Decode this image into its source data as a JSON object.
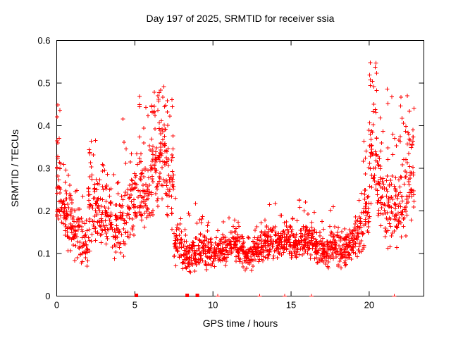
{
  "chart_data": {
    "type": "scatter",
    "title": "Day 197 of 2025, SRMTID for receiver ssia",
    "xlabel": "GPS time / hours",
    "ylabel": "SRMTID / TECUs",
    "xlim": [
      0,
      23.5
    ],
    "ylim": [
      0,
      0.6
    ],
    "xticks": [
      0,
      5,
      10,
      15,
      20
    ],
    "xtick_labels": [
      "0",
      "5",
      "10",
      "15",
      "20"
    ],
    "yticks": [
      0,
      0.1,
      0.2,
      0.3,
      0.4,
      0.5,
      0.6
    ],
    "ytick_labels": [
      "0",
      "0.1",
      "0.2",
      "0.3",
      "0.4",
      "0.5",
      "0.6"
    ],
    "grid": false,
    "legend": "none",
    "marker": "plus",
    "marker_color": "#ff0000",
    "series_name": "SRMTID",
    "density_envelope_bins": {
      "format": [
        "x_start_hours",
        "x_end_hours",
        "n_points",
        "y_min_tecu",
        "y_max_tecu",
        "y_spike_max_tecu",
        "spike_fraction"
      ],
      "bins": [
        [
          0.0,
          0.3,
          35,
          0.13,
          0.33,
          0.46,
          0.15
        ],
        [
          0.3,
          0.6,
          30,
          0.12,
          0.28,
          0.35,
          0.1
        ],
        [
          0.6,
          1.0,
          40,
          0.1,
          0.26,
          0.31,
          0.08
        ],
        [
          1.0,
          1.5,
          45,
          0.08,
          0.22,
          0.28,
          0.08
        ],
        [
          1.5,
          2.0,
          40,
          0.05,
          0.18,
          0.24,
          0.06
        ],
        [
          2.0,
          2.5,
          50,
          0.1,
          0.33,
          0.38,
          0.12
        ],
        [
          2.5,
          3.0,
          45,
          0.1,
          0.3,
          0.33,
          0.08
        ],
        [
          3.0,
          3.5,
          45,
          0.1,
          0.28,
          0.31,
          0.06
        ],
        [
          3.5,
          4.0,
          40,
          0.06,
          0.24,
          0.3,
          0.08
        ],
        [
          4.0,
          4.5,
          40,
          0.08,
          0.3,
          0.46,
          0.08
        ],
        [
          4.5,
          5.0,
          40,
          0.12,
          0.3,
          0.34,
          0.06
        ],
        [
          5.0,
          5.5,
          45,
          0.14,
          0.33,
          0.47,
          0.1
        ],
        [
          5.5,
          6.0,
          45,
          0.15,
          0.34,
          0.45,
          0.1
        ],
        [
          6.0,
          6.5,
          55,
          0.18,
          0.42,
          0.49,
          0.15
        ],
        [
          6.5,
          7.0,
          55,
          0.2,
          0.44,
          0.5,
          0.15
        ],
        [
          7.0,
          7.5,
          50,
          0.15,
          0.4,
          0.48,
          0.12
        ],
        [
          7.5,
          8.0,
          45,
          0.06,
          0.18,
          0.27,
          0.08
        ],
        [
          8.0,
          8.5,
          45,
          0.05,
          0.14,
          0.2,
          0.05
        ],
        [
          8.5,
          9.0,
          45,
          0.05,
          0.15,
          0.26,
          0.06
        ],
        [
          9.0,
          9.5,
          45,
          0.06,
          0.16,
          0.2,
          0.05
        ],
        [
          9.5,
          10.0,
          45,
          0.06,
          0.15,
          0.18,
          0.05
        ],
        [
          10.0,
          10.5,
          45,
          0.06,
          0.14,
          0.17,
          0.05
        ],
        [
          10.5,
          11.0,
          45,
          0.07,
          0.16,
          0.19,
          0.05
        ],
        [
          11.0,
          11.5,
          45,
          0.08,
          0.17,
          0.21,
          0.05
        ],
        [
          11.5,
          12.0,
          45,
          0.06,
          0.15,
          0.18,
          0.05
        ],
        [
          12.0,
          12.5,
          45,
          0.05,
          0.13,
          0.16,
          0.05
        ],
        [
          12.5,
          13.0,
          45,
          0.06,
          0.15,
          0.18,
          0.05
        ],
        [
          13.0,
          13.5,
          45,
          0.08,
          0.17,
          0.2,
          0.05
        ],
        [
          13.5,
          14.0,
          45,
          0.08,
          0.18,
          0.22,
          0.06
        ],
        [
          14.0,
          14.5,
          45,
          0.08,
          0.16,
          0.19,
          0.05
        ],
        [
          14.5,
          15.0,
          45,
          0.09,
          0.18,
          0.21,
          0.05
        ],
        [
          15.0,
          15.5,
          45,
          0.08,
          0.17,
          0.2,
          0.05
        ],
        [
          15.5,
          16.0,
          45,
          0.09,
          0.18,
          0.23,
          0.06
        ],
        [
          16.0,
          16.5,
          45,
          0.08,
          0.17,
          0.2,
          0.05
        ],
        [
          16.5,
          17.0,
          45,
          0.07,
          0.16,
          0.19,
          0.05
        ],
        [
          17.0,
          17.5,
          45,
          0.06,
          0.15,
          0.18,
          0.05
        ],
        [
          17.5,
          18.0,
          45,
          0.07,
          0.16,
          0.21,
          0.05
        ],
        [
          18.0,
          18.5,
          45,
          0.06,
          0.15,
          0.18,
          0.05
        ],
        [
          18.5,
          19.0,
          45,
          0.07,
          0.17,
          0.2,
          0.05
        ],
        [
          19.0,
          19.5,
          45,
          0.08,
          0.2,
          0.23,
          0.06
        ],
        [
          19.5,
          20.0,
          45,
          0.1,
          0.28,
          0.4,
          0.1
        ],
        [
          20.0,
          20.5,
          55,
          0.18,
          0.48,
          0.55,
          0.15
        ],
        [
          20.5,
          21.0,
          45,
          0.15,
          0.35,
          0.45,
          0.1
        ],
        [
          21.0,
          21.5,
          45,
          0.1,
          0.3,
          0.5,
          0.08
        ],
        [
          21.5,
          22.0,
          45,
          0.1,
          0.3,
          0.38,
          0.08
        ],
        [
          22.0,
          22.5,
          45,
          0.12,
          0.35,
          0.49,
          0.1
        ],
        [
          22.5,
          22.9,
          40,
          0.15,
          0.42,
          0.47,
          0.12
        ]
      ]
    },
    "baseline_markers_y0": {
      "squares_x": [
        5.1,
        8.35,
        9.0
      ],
      "ticks_x": [
        10.3,
        13.0,
        14.6,
        16.3,
        21.6
      ]
    }
  }
}
